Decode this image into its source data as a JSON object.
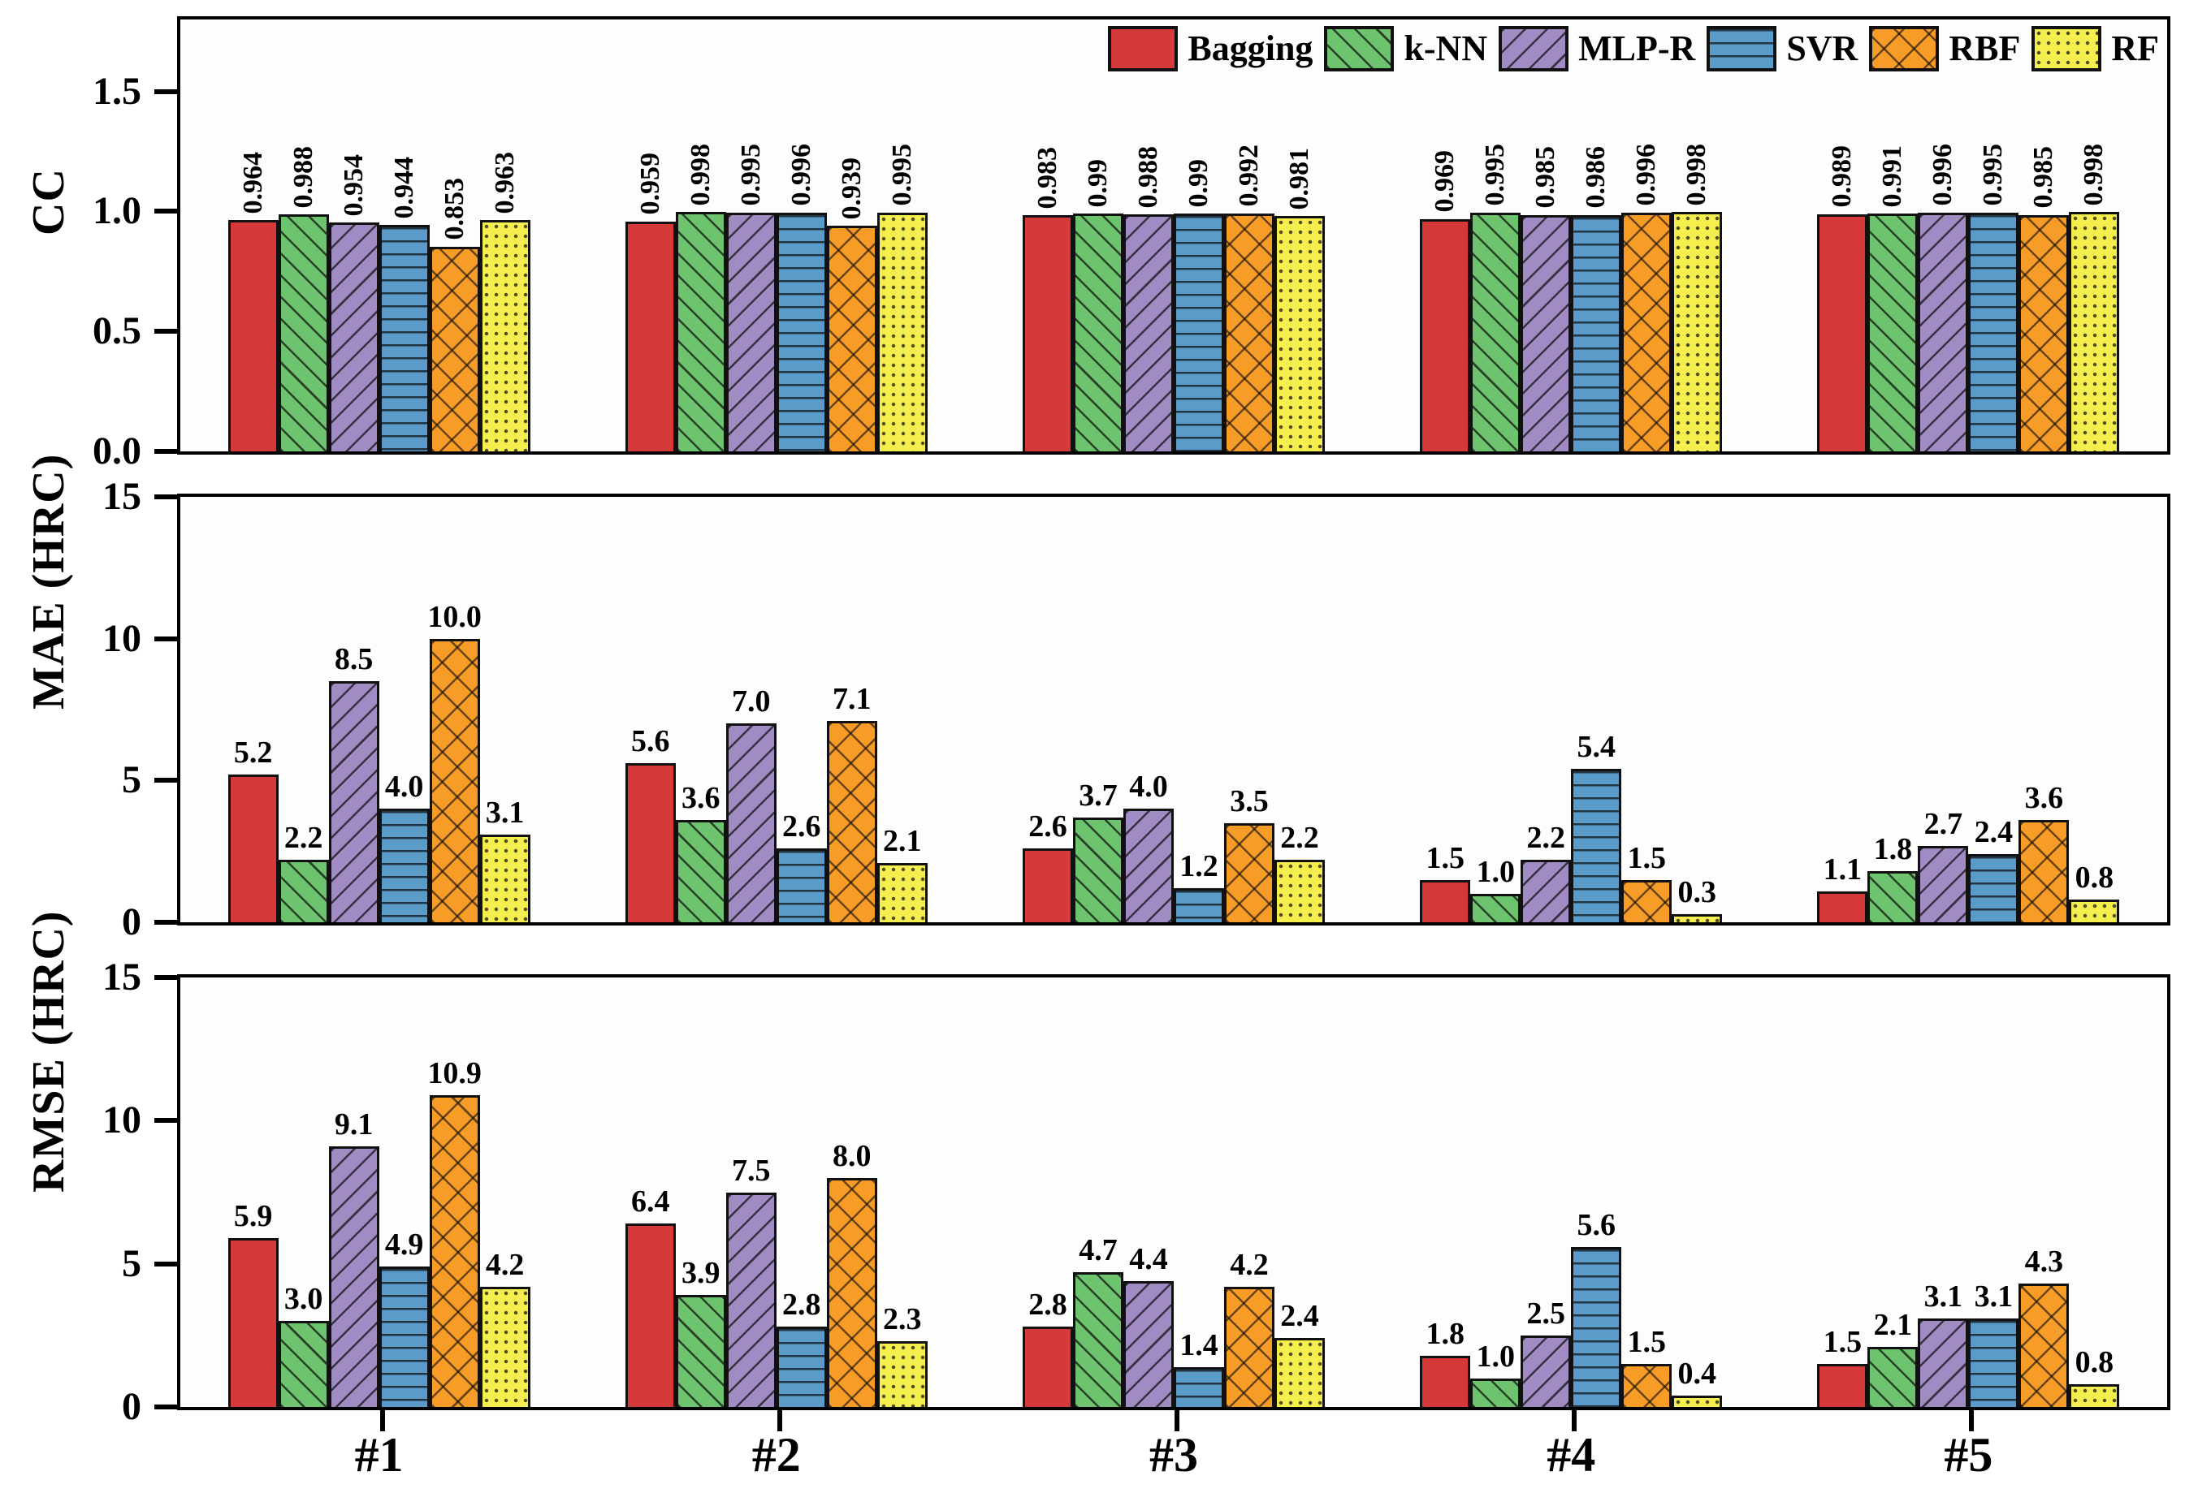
{
  "figure": {
    "categories": [
      "#1",
      "#2",
      "#3",
      "#4",
      "#5"
    ],
    "legend": [
      {
        "name": "Bagging",
        "color": "#d6393a",
        "pattern": "solid"
      },
      {
        "name": "k-NN",
        "color": "#6ec36e",
        "pattern": "diag-up"
      },
      {
        "name": "MLP-R",
        "color": "#a08cc3",
        "pattern": "diag-down"
      },
      {
        "name": "SVR",
        "color": "#5b9bc9",
        "pattern": "horizontal"
      },
      {
        "name": "RBF",
        "color": "#f89c28",
        "pattern": "cross"
      },
      {
        "name": "RF",
        "color": "#f4ee4e",
        "pattern": "dots"
      }
    ]
  },
  "chart_data": [
    {
      "type": "bar",
      "title": "",
      "xlabel": "",
      "ylabel": "CC",
      "ylim": [
        0,
        1.8
      ],
      "yticks": [
        "0.0",
        "0.5",
        "1.0",
        "1.5"
      ],
      "grid": false,
      "legend_position": "top-right",
      "value_labels_rotated": true,
      "categories": [
        "#1",
        "#2",
        "#3",
        "#4",
        "#5"
      ],
      "series": [
        {
          "name": "Bagging",
          "values": [
            "0.964",
            "0.959",
            "0.983",
            "0.969",
            "0.989"
          ]
        },
        {
          "name": "k-NN",
          "values": [
            "0.988",
            "0.998",
            "0.99",
            "0.995",
            "0.991"
          ]
        },
        {
          "name": "MLP-R",
          "values": [
            "0.954",
            "0.995",
            "0.988",
            "0.985",
            "0.996"
          ]
        },
        {
          "name": "SVR",
          "values": [
            "0.944",
            "0.996",
            "0.99",
            "0.986",
            "0.995"
          ]
        },
        {
          "name": "RBF",
          "values": [
            "0.853",
            "0.939",
            "0.992",
            "0.996",
            "0.985"
          ]
        },
        {
          "name": "RF",
          "values": [
            "0.963",
            "0.995",
            "0.981",
            "0.998",
            "0.998"
          ]
        }
      ]
    },
    {
      "type": "bar",
      "title": "",
      "xlabel": "",
      "ylabel": "MAE (HRC)",
      "ylim": [
        0,
        15
      ],
      "yticks": [
        "0",
        "5",
        "10",
        "15"
      ],
      "grid": false,
      "value_labels_rotated": false,
      "categories": [
        "#1",
        "#2",
        "#3",
        "#4",
        "#5"
      ],
      "series": [
        {
          "name": "Bagging",
          "values": [
            "5.2",
            "5.6",
            "2.6",
            "1.5",
            "1.1"
          ]
        },
        {
          "name": "k-NN",
          "values": [
            "2.2",
            "3.6",
            "3.7",
            "1.0",
            "1.8"
          ]
        },
        {
          "name": "MLP-R",
          "values": [
            "8.5",
            "7.0",
            "4.0",
            "2.2",
            "2.7"
          ]
        },
        {
          "name": "SVR",
          "values": [
            "4.0",
            "2.6",
            "1.2",
            "5.4",
            "2.4"
          ]
        },
        {
          "name": "RBF",
          "values": [
            "10.0",
            "7.1",
            "3.5",
            "1.5",
            "3.6"
          ]
        },
        {
          "name": "RF",
          "values": [
            "3.1",
            "2.1",
            "2.2",
            "0.3",
            "0.8"
          ]
        }
      ]
    },
    {
      "type": "bar",
      "title": "",
      "xlabel": "",
      "ylabel": "RMSE (HRC)",
      "ylim": [
        0,
        15
      ],
      "yticks": [
        "0",
        "5",
        "10",
        "15"
      ],
      "grid": false,
      "value_labels_rotated": false,
      "categories": [
        "#1",
        "#2",
        "#3",
        "#4",
        "#5"
      ],
      "series": [
        {
          "name": "Bagging",
          "values": [
            "5.9",
            "6.4",
            "2.8",
            "1.8",
            "1.5"
          ]
        },
        {
          "name": "k-NN",
          "values": [
            "3.0",
            "3.9",
            "4.7",
            "1.0",
            "2.1"
          ]
        },
        {
          "name": "MLP-R",
          "values": [
            "9.1",
            "7.5",
            "4.4",
            "2.5",
            "3.1"
          ]
        },
        {
          "name": "SVR",
          "values": [
            "4.9",
            "2.8",
            "1.4",
            "5.6",
            "3.1"
          ]
        },
        {
          "name": "RBF",
          "values": [
            "10.9",
            "8.0",
            "4.2",
            "1.5",
            "4.3"
          ]
        },
        {
          "name": "RF",
          "values": [
            "4.2",
            "2.3",
            "2.4",
            "0.4",
            "0.8"
          ]
        }
      ]
    }
  ]
}
